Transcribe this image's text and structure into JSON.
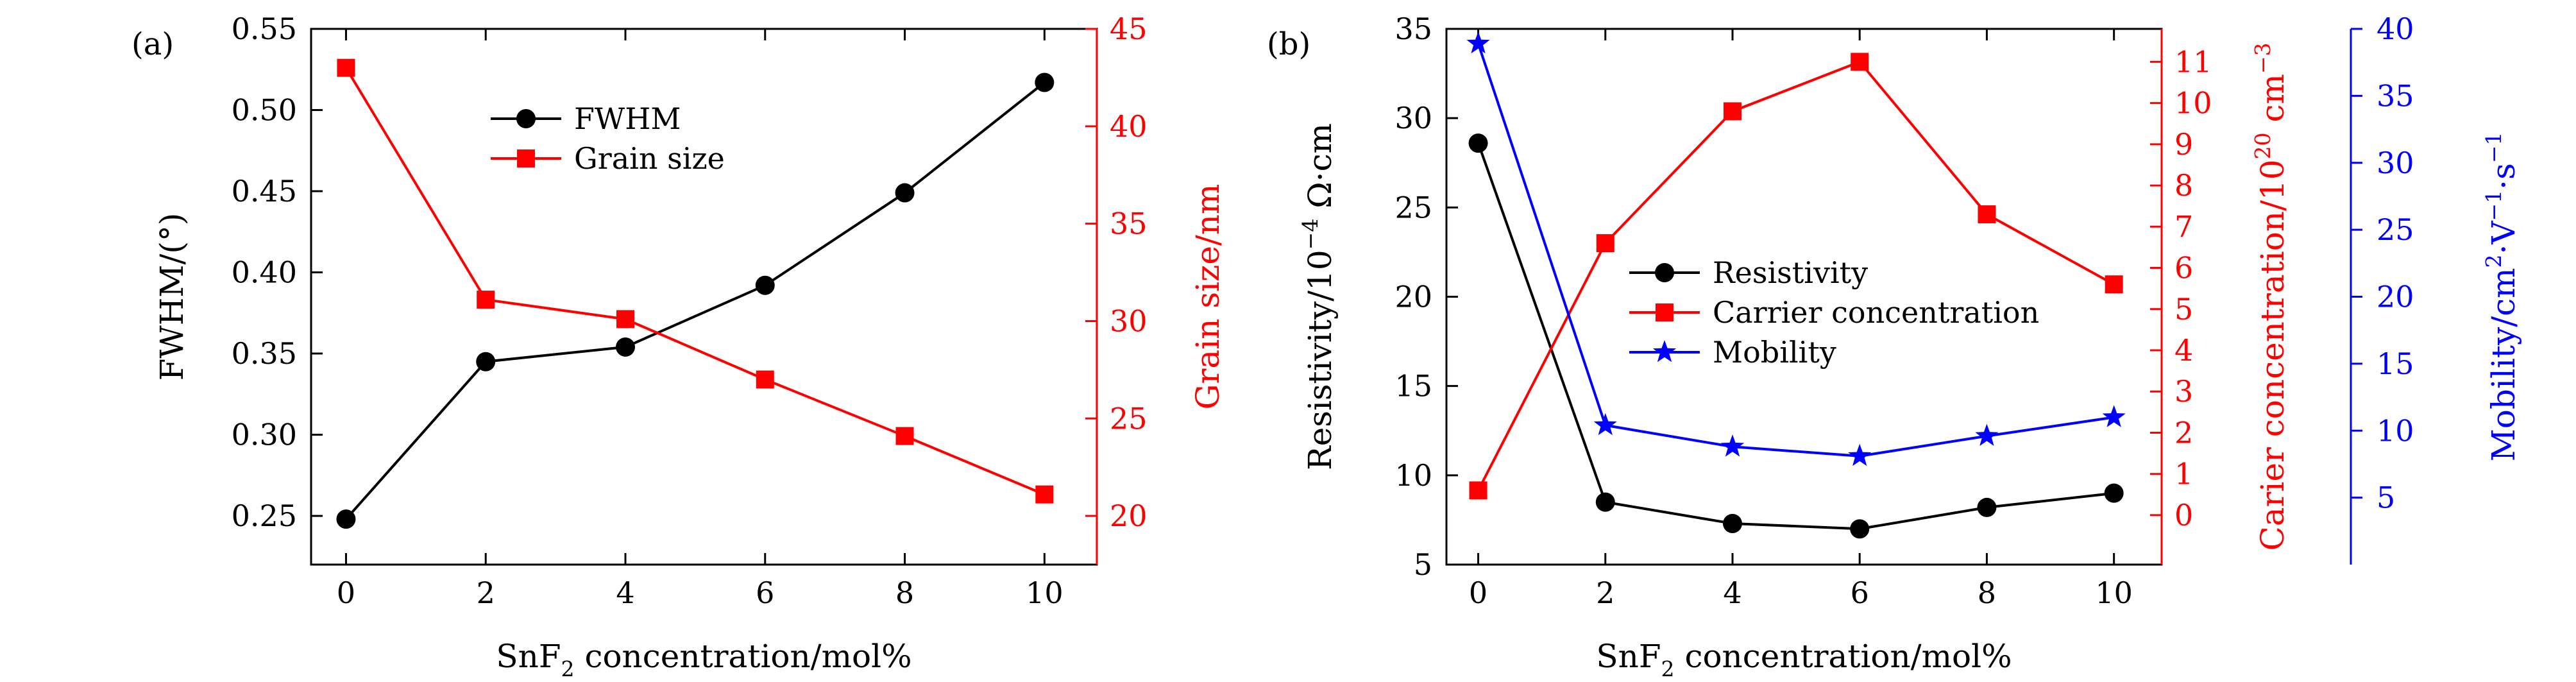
{
  "chart_data": [
    {
      "panel": "(a)",
      "type": "line",
      "x": [
        0,
        2,
        4,
        6,
        8,
        10
      ],
      "xlabel": {
        "pre": "SnF",
        "sub": "2",
        "post": " concentration/mol%"
      },
      "xlim": [
        -0.5,
        10.75
      ],
      "xticks": [
        0,
        2,
        4,
        6,
        8,
        10
      ],
      "left_axis": {
        "label": "FWHM/(°)",
        "ylim": [
          0.22,
          0.55
        ],
        "ticks": [
          "0.25",
          "0.30",
          "0.35",
          "0.40",
          "0.45",
          "0.50",
          "0.55"
        ],
        "color": "#000000"
      },
      "right_axis": {
        "label": "Grain size/nm",
        "ylim": [
          17.5,
          45
        ],
        "ticks": [
          "20",
          "25",
          "30",
          "35",
          "40",
          "45"
        ],
        "color": "#ff0000"
      },
      "series": [
        {
          "name": "FWHM",
          "axis": "left",
          "color": "#000000",
          "marker": "circle",
          "values": [
            0.248,
            0.345,
            0.354,
            0.392,
            0.449,
            0.517
          ]
        },
        {
          "name": "Grain size",
          "axis": "right",
          "color": "#ff0000",
          "marker": "square",
          "values": [
            43.0,
            31.1,
            30.1,
            27.0,
            24.1,
            21.1
          ]
        }
      ],
      "legend": "upper-center"
    },
    {
      "panel": "(b)",
      "type": "line",
      "x": [
        0,
        2,
        4,
        6,
        8,
        10
      ],
      "xlabel": {
        "pre": "SnF",
        "sub": "2",
        "post": " concentration/mol%"
      },
      "xlim": [
        -0.5,
        10.75
      ],
      "xticks": [
        0,
        2,
        4,
        6,
        8,
        10
      ],
      "left_axis": {
        "label": {
          "pre": "Resistivity/10",
          "sup": "−4",
          "post": " Ω·cm"
        },
        "ylim": [
          5,
          35
        ],
        "ticks": [
          "5",
          "10",
          "15",
          "20",
          "25",
          "30",
          "35"
        ],
        "color": "#000000"
      },
      "right_axis": {
        "label": {
          "pre": "Carier concentration/10",
          "sup": "20",
          "mid": " cm",
          "sup2": "−3"
        },
        "ylim": [
          -1.2,
          11.8
        ],
        "ticks": [
          "0",
          "1",
          "2",
          "3",
          "4",
          "5",
          "6",
          "7",
          "8",
          "9",
          "10",
          "11"
        ],
        "color": "#ff0000"
      },
      "third_axis": {
        "label": {
          "pre": "Mobility/cm",
          "sup": "2",
          "mid": "·V",
          "sup2": "−1",
          "mid2": "·s",
          "sup3": "−1"
        },
        "ylim": [
          0,
          40
        ],
        "ticks": [
          "5",
          "10",
          "15",
          "20",
          "25",
          "30",
          "35",
          "40"
        ],
        "color": "#0000ff"
      },
      "series": [
        {
          "name": "Resistivity",
          "axis": "left",
          "color": "#000000",
          "marker": "circle",
          "values": [
            28.6,
            8.5,
            7.3,
            7.0,
            8.2,
            9.0
          ]
        },
        {
          "name": "Carrier concentration",
          "axis": "right",
          "color": "#ff0000",
          "marker": "square",
          "values": [
            0.6,
            6.6,
            9.8,
            11.0,
            7.3,
            5.6
          ]
        },
        {
          "name": "Mobility",
          "axis": "third",
          "color": "#0000ff",
          "marker": "star",
          "values": [
            38.9,
            10.4,
            8.8,
            8.1,
            9.6,
            11.0
          ]
        }
      ],
      "legend": "center"
    }
  ]
}
